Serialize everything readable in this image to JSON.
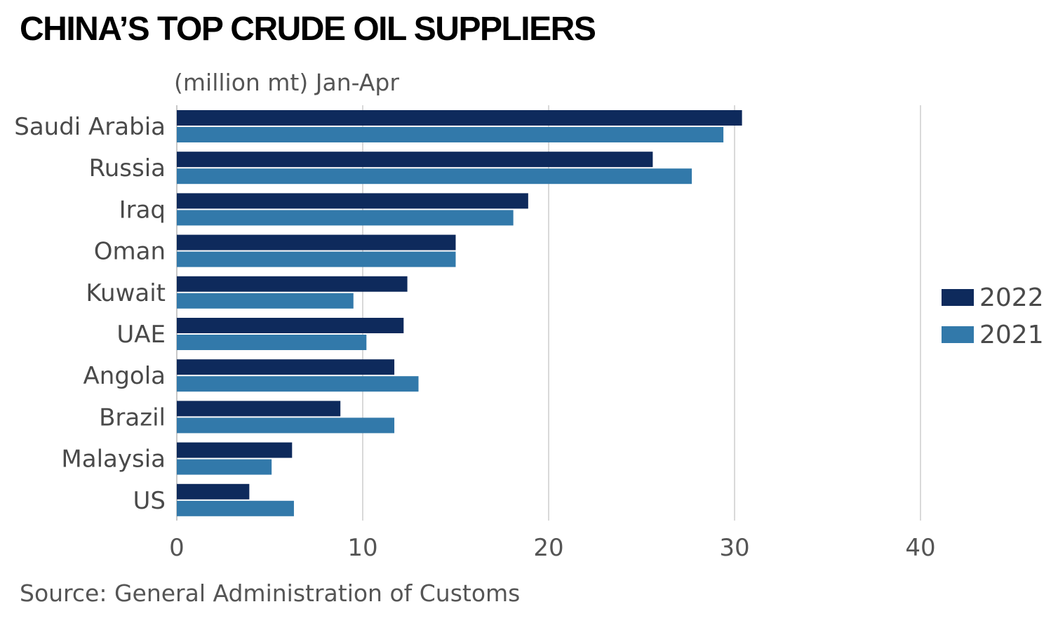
{
  "title": "CHINA’S TOP CRUDE OIL SUPPLIERS",
  "subtitle": "(million mt) Jan-Apr",
  "source": "Source: General Administration of Customs",
  "colors": {
    "series_2022": "#0e2a5c",
    "series_2021": "#3279aa",
    "grid": "#d9d9d9"
  },
  "chart_data": {
    "type": "bar",
    "orientation": "horizontal",
    "title": "CHINA’S TOP CRUDE OIL SUPPLIERS",
    "subtitle": "(million mt) Jan-Apr",
    "categories": [
      "Saudi Arabia",
      "Russia",
      "Iraq",
      "Oman",
      "Kuwait",
      "UAE",
      "Angola",
      "Brazil",
      "Malaysia",
      "US"
    ],
    "series": [
      {
        "name": "2022",
        "color": "#0e2a5c",
        "values": [
          30.4,
          25.6,
          18.9,
          15.0,
          12.4,
          12.2,
          11.7,
          8.8,
          6.2,
          3.9
        ]
      },
      {
        "name": "2021",
        "color": "#3279aa",
        "values": [
          29.4,
          27.7,
          18.1,
          15.0,
          9.5,
          10.2,
          13.0,
          11.7,
          5.1,
          6.3
        ]
      }
    ],
    "xlim": [
      0,
      40
    ],
    "xticks": [
      "0",
      "10",
      "20",
      "30",
      "40"
    ],
    "xlabel": "",
    "ylabel": "",
    "grid": true,
    "legend_position": "right"
  }
}
